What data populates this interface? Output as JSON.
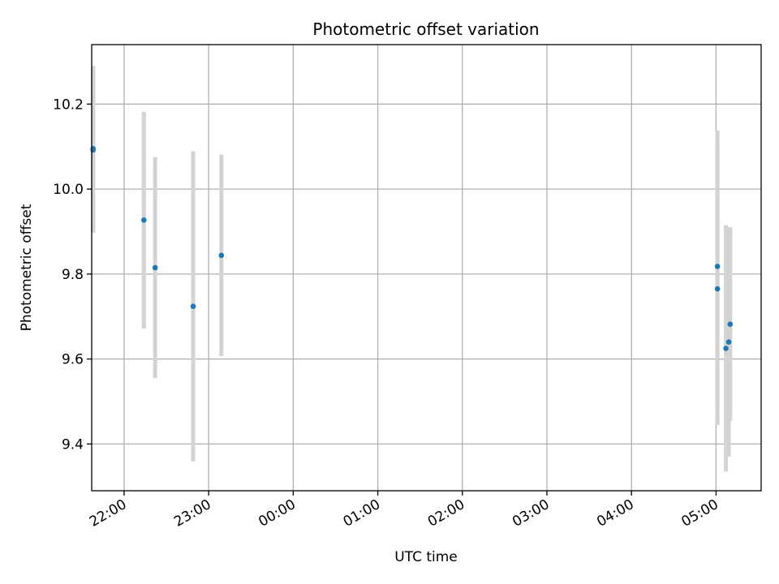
{
  "chart_data": {
    "type": "scatter",
    "title": "Photometric offset variation",
    "xlabel": "UTC time",
    "ylabel": "Photometric offset",
    "x_axis": "time (UTC)",
    "xlim": [
      "21:37",
      "05:32"
    ],
    "ylim": [
      9.29,
      10.34
    ],
    "grid": true,
    "x_ticks": [
      "22:00",
      "23:00",
      "00:00",
      "01:00",
      "02:00",
      "03:00",
      "04:00",
      "05:00"
    ],
    "y_ticks": [
      9.4,
      9.6,
      9.8,
      10.0,
      10.2
    ],
    "y_tick_labels": [
      "9.4",
      "9.6",
      "9.8",
      "10.0",
      "10.2"
    ],
    "marker_color": "#1f77b4",
    "errorbar_color": "#d3d3d3",
    "points": [
      {
        "t": "21:38",
        "y": 10.095,
        "err": 0.195
      },
      {
        "t": "21:38",
        "y": 10.092,
        "err": 0.195
      },
      {
        "t": "22:14",
        "y": 9.927,
        "err": 0.255
      },
      {
        "t": "22:22",
        "y": 9.815,
        "err": 0.26
      },
      {
        "t": "22:49",
        "y": 9.724,
        "err": 0.365
      },
      {
        "t": "23:09",
        "y": 9.844,
        "err": 0.237
      },
      {
        "t": "05:01",
        "y": 9.818,
        "err": 0.32
      },
      {
        "t": "05:01",
        "y": 9.765,
        "err": 0.32
      },
      {
        "t": "05:07",
        "y": 9.625,
        "err": 0.29
      },
      {
        "t": "05:09",
        "y": 9.64,
        "err": 0.27
      },
      {
        "t": "05:10",
        "y": 9.682,
        "err": 0.228
      }
    ]
  }
}
